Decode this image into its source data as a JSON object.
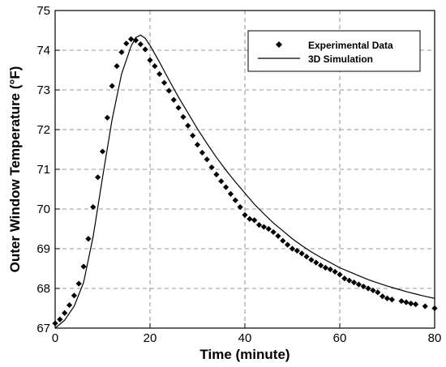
{
  "chart_data": {
    "type": "scatter",
    "xlabel": "Time (minute)",
    "ylabel": "Outer Window Temperature (°F)",
    "xlim": [
      0,
      80
    ],
    "ylim": [
      67,
      75
    ],
    "x_ticks": [
      0,
      20,
      40,
      60,
      80
    ],
    "y_ticks": [
      67,
      68,
      69,
      70,
      71,
      72,
      73,
      74,
      75
    ],
    "grid": "dashed",
    "legend_position": "top-right",
    "series": [
      {
        "name": "Experimental Data",
        "kind": "markers",
        "marker": "diamond",
        "points": [
          [
            0,
            67.12
          ],
          [
            1,
            67.22
          ],
          [
            2,
            67.38
          ],
          [
            3,
            67.58
          ],
          [
            4,
            67.82
          ],
          [
            5,
            68.12
          ],
          [
            6,
            68.55
          ],
          [
            7,
            69.25
          ],
          [
            8,
            70.05
          ],
          [
            9,
            70.8
          ],
          [
            10,
            71.45
          ],
          [
            11,
            72.3
          ],
          [
            12,
            73.1
          ],
          [
            13,
            73.6
          ],
          [
            14,
            73.95
          ],
          [
            15,
            74.17
          ],
          [
            16,
            74.28
          ],
          [
            17,
            74.25
          ],
          [
            18,
            74.15
          ],
          [
            19,
            74.02
          ],
          [
            20,
            73.75
          ],
          [
            21,
            73.6
          ],
          [
            22,
            73.4
          ],
          [
            23,
            73.18
          ],
          [
            24,
            72.98
          ],
          [
            25,
            72.75
          ],
          [
            26,
            72.55
          ],
          [
            27,
            72.32
          ],
          [
            28,
            72.1
          ],
          [
            29,
            71.85
          ],
          [
            30,
            71.62
          ],
          [
            31,
            71.42
          ],
          [
            32,
            71.25
          ],
          [
            33,
            71.05
          ],
          [
            34,
            70.87
          ],
          [
            35,
            70.7
          ],
          [
            36,
            70.55
          ],
          [
            37,
            70.38
          ],
          [
            38,
            70.22
          ],
          [
            39,
            70.05
          ],
          [
            40,
            69.85
          ],
          [
            41,
            69.75
          ],
          [
            42,
            69.72
          ],
          [
            43,
            69.6
          ],
          [
            44,
            69.55
          ],
          [
            45,
            69.5
          ],
          [
            46,
            69.42
          ],
          [
            47,
            69.32
          ],
          [
            48,
            69.2
          ],
          [
            49,
            69.1
          ],
          [
            50,
            69.0
          ],
          [
            51,
            68.95
          ],
          [
            52,
            68.88
          ],
          [
            53,
            68.8
          ],
          [
            54,
            68.72
          ],
          [
            55,
            68.65
          ],
          [
            56,
            68.58
          ],
          [
            57,
            68.52
          ],
          [
            58,
            68.48
          ],
          [
            59,
            68.42
          ],
          [
            60,
            68.35
          ],
          [
            61,
            68.25
          ],
          [
            62,
            68.2
          ],
          [
            63,
            68.15
          ],
          [
            64,
            68.1
          ],
          [
            65,
            68.05
          ],
          [
            66,
            68.0
          ],
          [
            67,
            67.95
          ],
          [
            68,
            67.9
          ],
          [
            69,
            67.8
          ],
          [
            70,
            67.75
          ],
          [
            71,
            67.72
          ],
          [
            73,
            67.68
          ],
          [
            74,
            67.65
          ],
          [
            75,
            67.62
          ],
          [
            76,
            67.6
          ],
          [
            78,
            67.55
          ],
          [
            80,
            67.5
          ]
        ]
      },
      {
        "name": "3D Simulation",
        "kind": "line",
        "points": [
          [
            0,
            67.0
          ],
          [
            2,
            67.2
          ],
          [
            4,
            67.55
          ],
          [
            6,
            68.15
          ],
          [
            8,
            69.3
          ],
          [
            10,
            70.8
          ],
          [
            12,
            72.25
          ],
          [
            14,
            73.4
          ],
          [
            16,
            74.1
          ],
          [
            17,
            74.32
          ],
          [
            18,
            74.38
          ],
          [
            19,
            74.3
          ],
          [
            20,
            74.12
          ],
          [
            22,
            73.7
          ],
          [
            24,
            73.25
          ],
          [
            26,
            72.82
          ],
          [
            28,
            72.42
          ],
          [
            30,
            72.02
          ],
          [
            32,
            71.65
          ],
          [
            34,
            71.3
          ],
          [
            36,
            70.98
          ],
          [
            38,
            70.68
          ],
          [
            40,
            70.4
          ],
          [
            42,
            70.12
          ],
          [
            44,
            69.88
          ],
          [
            46,
            69.65
          ],
          [
            48,
            69.45
          ],
          [
            50,
            69.25
          ],
          [
            52,
            69.08
          ],
          [
            54,
            68.92
          ],
          [
            56,
            68.78
          ],
          [
            58,
            68.65
          ],
          [
            60,
            68.52
          ],
          [
            62,
            68.42
          ],
          [
            64,
            68.32
          ],
          [
            66,
            68.22
          ],
          [
            68,
            68.14
          ],
          [
            70,
            68.06
          ],
          [
            72,
            67.99
          ],
          [
            74,
            67.92
          ],
          [
            76,
            67.86
          ],
          [
            78,
            67.8
          ],
          [
            80,
            67.75
          ]
        ]
      }
    ]
  }
}
